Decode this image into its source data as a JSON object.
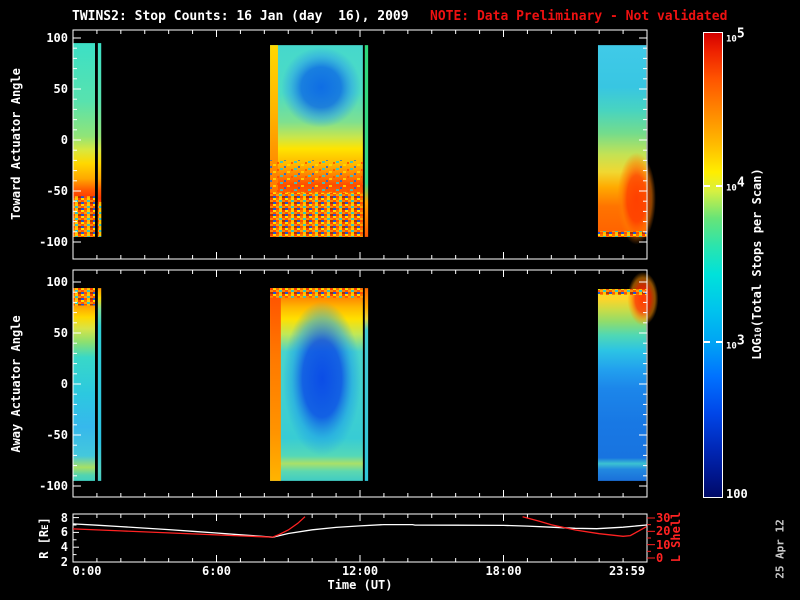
{
  "title": {
    "main": "TWINS2: Stop Counts: 16 Jan (day  16), 2009",
    "note": "NOTE: Data Preliminary - Not validated"
  },
  "colors": {
    "background": "#000000",
    "foreground": "#ffffff",
    "note_red": "#ee1111",
    "lshell_red": "#ff2222",
    "date_gray": "#c8c8c8"
  },
  "axes": {
    "x": {
      "label": "Time (UT)",
      "tick_labels": [
        "0:00",
        "6:00",
        "12:00",
        "18:00",
        "23:59"
      ],
      "tick_hours": [
        0,
        6,
        12,
        18,
        23.983
      ]
    },
    "toward": {
      "label": "Toward Actuator Angle",
      "tick_labels": [
        "100",
        "50",
        "0",
        "-50",
        "-100"
      ],
      "tick_values": [
        100,
        50,
        0,
        -50,
        -100
      ],
      "range": [
        -100,
        100
      ]
    },
    "away": {
      "label": "Away Actuator Angle",
      "tick_labels": [
        "100",
        "50",
        "0",
        "-50",
        "-100"
      ],
      "tick_values": [
        100,
        50,
        0,
        -50,
        -100
      ],
      "range": [
        -100,
        100
      ]
    },
    "r": {
      "label_pre": "R [R",
      "label_sub": "E",
      "label_post": "]",
      "tick_labels": [
        "8",
        "6",
        "4",
        "2"
      ],
      "tick_values": [
        8,
        6,
        4,
        2
      ],
      "range": [
        2,
        8.5
      ]
    },
    "lshell": {
      "label": "L Shell",
      "tick_labels": [
        "30",
        "20",
        "10",
        "0"
      ],
      "tick_values": [
        30,
        20,
        10,
        0
      ],
      "range": [
        0,
        33
      ],
      "color": "#ff2222"
    }
  },
  "colorbar": {
    "label_pre": "LOG",
    "label_sub": "10",
    "label_post": "(Total Stops per Scan)",
    "e5_base": "10",
    "e5_exp": "5",
    "e4_base": "10",
    "e4_exp": "4",
    "e3_base": "10",
    "e3_exp": "3",
    "min_label": "100",
    "gradient": [
      [
        0,
        "#d40000"
      ],
      [
        0.04,
        "#ee2200"
      ],
      [
        0.1,
        "#ff5500"
      ],
      [
        0.17,
        "#ff8800"
      ],
      [
        0.24,
        "#ffbb00"
      ],
      [
        0.3,
        "#ffee00"
      ],
      [
        0.34,
        "#d8f040"
      ],
      [
        0.4,
        "#66e478"
      ],
      [
        0.46,
        "#2ae4ae"
      ],
      [
        0.52,
        "#00e2da"
      ],
      [
        0.6,
        "#00c2ee"
      ],
      [
        0.667,
        "#00a4f4"
      ],
      [
        0.74,
        "#0072ff"
      ],
      [
        0.82,
        "#0046e8"
      ],
      [
        0.9,
        "#0026b4"
      ],
      [
        0.96,
        "#001488"
      ],
      [
        1,
        "#000a66"
      ]
    ]
  },
  "footer": {
    "date_stamp": "25 Apr 12"
  },
  "chart_data": [
    {
      "id": "toward",
      "type": "heatmap",
      "ylabel": "Toward Actuator Angle",
      "ylim": [
        -100,
        100
      ],
      "xlim_hours": [
        0,
        24
      ],
      "zscale": {
        "label": "LOG10(Total Stops per Scan)",
        "min": 100,
        "max": 100000,
        "scale": "log",
        "colormap": "rainbow blue=low red=high"
      },
      "coverage_hours": [
        [
          0,
          0.92
        ],
        [
          1.04,
          1.18
        ],
        [
          8.24,
          12.12
        ],
        [
          12.2,
          12.34
        ],
        [
          21.95,
          23.97
        ]
      ],
      "blocks": [
        {
          "x_h": [
            0,
            0.92
          ],
          "y_a": [
            95,
            -95
          ],
          "noise": [
            0.79,
            1
          ],
          "stops": [
            [
              0,
              "#3ce0c6"
            ],
            [
              0.3,
              "#58e2ae"
            ],
            [
              0.48,
              "#90e478"
            ],
            [
              0.55,
              "#d8e840"
            ],
            [
              0.62,
              "#ffd800"
            ],
            [
              0.7,
              "#ffa800"
            ],
            [
              0.76,
              "#ff5800"
            ],
            [
              0.8,
              "#ff3800"
            ],
            [
              0.86,
              "#ff7400"
            ],
            [
              1,
              "#ff8400"
            ]
          ]
        },
        {
          "x_h": [
            1.04,
            1.18
          ],
          "y_a": [
            95,
            -95
          ],
          "noise": [
            0.82,
            1
          ],
          "stops": [
            [
              0,
              "#3ce0c6"
            ],
            [
              0.3,
              "#58e2ae"
            ],
            [
              0.48,
              "#90e478"
            ],
            [
              0.55,
              "#d8e840"
            ],
            [
              0.62,
              "#ffd800"
            ],
            [
              0.7,
              "#ffa800"
            ],
            [
              0.76,
              "#ff5800"
            ],
            [
              0.8,
              "#ff3800"
            ],
            [
              0.86,
              "#ff7400"
            ],
            [
              1,
              "#ff8400"
            ]
          ]
        },
        {
          "x_h": [
            8.24,
            12.12
          ],
          "y_a": [
            93,
            -95
          ],
          "noise": [
            0.77,
            1
          ],
          "noise2": [
            0.6,
            0.77
          ],
          "left_col": {
            "w_h": 0.33,
            "stops": [
              [
                0,
                "#ffd800"
              ],
              [
                0.35,
                "#ffb400"
              ],
              [
                0.6,
                "#ff9000"
              ],
              [
                0.85,
                "#ff6800"
              ],
              [
                1,
                "#ff5000"
              ]
            ]
          },
          "blob": {
            "cx": 0.55,
            "cy": 0.22,
            "rx": 0.43,
            "ry": 0.21,
            "color": "#0c68e6",
            "mid": "#2ea2e8"
          },
          "stops": [
            [
              0,
              "#46d8cc"
            ],
            [
              0.25,
              "#4cdcc4"
            ],
            [
              0.4,
              "#7ee090"
            ],
            [
              0.48,
              "#c8e64c"
            ],
            [
              0.54,
              "#ffe400"
            ],
            [
              0.62,
              "#ffb800"
            ],
            [
              0.68,
              "#ff8000"
            ],
            [
              0.73,
              "#ff4c00"
            ],
            [
              0.78,
              "#ff6800"
            ],
            [
              1,
              "#ff7c00"
            ]
          ]
        },
        {
          "x_h": [
            12.2,
            12.34
          ],
          "y_a": [
            93,
            -95
          ],
          "stops": [
            [
              0,
              "#2ed87c"
            ],
            [
              0.72,
              "#38dc86"
            ],
            [
              0.82,
              "#ffa400"
            ],
            [
              1,
              "#ff5800"
            ]
          ]
        },
        {
          "x_h": [
            21.95,
            23.97
          ],
          "y_a": [
            93,
            -95
          ],
          "noise": [
            0.97,
            1
          ],
          "blob": {
            "cx": 0.8,
            "cy": 0.8,
            "rx": 0.4,
            "ry": 0.24,
            "color": "#ff3c00",
            "mid": "#ff7a00"
          },
          "stops": [
            [
              0,
              "#40cae8"
            ],
            [
              0.22,
              "#38c6e2"
            ],
            [
              0.34,
              "#48d4c0"
            ],
            [
              0.46,
              "#74dc8c"
            ],
            [
              0.57,
              "#c4e254"
            ],
            [
              0.66,
              "#f0d832"
            ],
            [
              0.74,
              "#ffaa00"
            ],
            [
              0.84,
              "#ff7400"
            ],
            [
              1,
              "#ff6000"
            ]
          ]
        }
      ]
    },
    {
      "id": "away",
      "type": "heatmap",
      "ylabel": "Away Actuator Angle",
      "ylim": [
        -100,
        100
      ],
      "xlim_hours": [
        0,
        24
      ],
      "zscale": {
        "label": "LOG10(Total Stops per Scan)",
        "min": 100,
        "max": 100000,
        "scale": "log",
        "colormap": "rainbow blue=low red=high"
      },
      "coverage_hours": [
        [
          0,
          0.92
        ],
        [
          1.04,
          1.18
        ],
        [
          8.24,
          12.12
        ],
        [
          12.2,
          12.34
        ],
        [
          21.95,
          23.97
        ]
      ],
      "blocks": [
        {
          "x_h": [
            0,
            0.92
          ],
          "y_a": [
            94,
            -95
          ],
          "noise": [
            0,
            0.09
          ],
          "stops": [
            [
              0,
              "#ff5000"
            ],
            [
              0.05,
              "#ff7800"
            ],
            [
              0.1,
              "#ffa800"
            ],
            [
              0.15,
              "#ffd800"
            ],
            [
              0.21,
              "#d8e448"
            ],
            [
              0.28,
              "#8ce070"
            ],
            [
              0.36,
              "#38d8c8"
            ],
            [
              0.55,
              "#2cc8e0"
            ],
            [
              0.72,
              "#36b8ec"
            ],
            [
              0.87,
              "#44c8dc"
            ],
            [
              0.93,
              "#a8e064"
            ],
            [
              0.97,
              "#52d4b0"
            ],
            [
              1,
              "#40d0c0"
            ]
          ]
        },
        {
          "x_h": [
            1.04,
            1.18
          ],
          "y_a": [
            94,
            -95
          ],
          "stops": [
            [
              0,
              "#ff9800"
            ],
            [
              0.05,
              "#ffd800"
            ],
            [
              0.11,
              "#7ce09a"
            ],
            [
              0.2,
              "#30d0d4"
            ],
            [
              0.8,
              "#2cc2e2"
            ],
            [
              0.95,
              "#54d2c0"
            ],
            [
              1,
              "#44ccc8"
            ]
          ]
        },
        {
          "x_h": [
            8.24,
            12.12
          ],
          "y_a": [
            94,
            -95
          ],
          "noise": [
            0,
            0.05
          ],
          "left_col": {
            "w_h": 0.45,
            "stops": [
              [
                0,
                "#ff5000"
              ],
              [
                0.35,
                "#ff7800"
              ],
              [
                0.75,
                "#ff9400"
              ],
              [
                1,
                "#ffb400"
              ]
            ]
          },
          "blob": {
            "cx": 0.56,
            "cy": 0.47,
            "rx": 0.42,
            "ry": 0.4,
            "color": "#0846e8",
            "mid": "#20a0e8"
          },
          "stops": [
            [
              0,
              "#ff5800"
            ],
            [
              0.05,
              "#ff8800"
            ],
            [
              0.1,
              "#ffb800"
            ],
            [
              0.16,
              "#ffe000"
            ],
            [
              0.24,
              "#c0e858"
            ],
            [
              0.33,
              "#48d4cc"
            ],
            [
              0.78,
              "#38ccd4"
            ],
            [
              0.87,
              "#54d8b8"
            ],
            [
              0.91,
              "#aae068"
            ],
            [
              0.95,
              "#5cd8b0"
            ],
            [
              1,
              "#40ccc4"
            ]
          ]
        },
        {
          "x_h": [
            12.2,
            12.34
          ],
          "y_a": [
            94,
            -95
          ],
          "stops": [
            [
              0,
              "#ff6a00"
            ],
            [
              0.1,
              "#ffac00"
            ],
            [
              0.16,
              "#e8d840"
            ],
            [
              0.22,
              "#44ccd4"
            ],
            [
              1,
              "#30c6da"
            ]
          ]
        },
        {
          "x_h": [
            21.95,
            23.97
          ],
          "y_a": [
            93,
            -95
          ],
          "noise": [
            0,
            0.03
          ],
          "blob": {
            "cx": 0.93,
            "cy": 0.05,
            "rx": 0.32,
            "ry": 0.14,
            "color": "#ff3400",
            "mid": "#ff9000"
          },
          "stops": [
            [
              0,
              "#e8e030"
            ],
            [
              0.05,
              "#ffd428"
            ],
            [
              0.11,
              "#c8dc48"
            ],
            [
              0.17,
              "#90dc6c"
            ],
            [
              0.24,
              "#50d8b4"
            ],
            [
              0.32,
              "#2cc4e4"
            ],
            [
              0.42,
              "#22a0ee"
            ],
            [
              0.52,
              "#1c86ea"
            ],
            [
              0.7,
              "#1878e4"
            ],
            [
              0.88,
              "#1874e0"
            ],
            [
              0.91,
              "#3cc2d2"
            ],
            [
              0.94,
              "#2288e0"
            ],
            [
              1,
              "#1a70da"
            ]
          ]
        }
      ]
    },
    {
      "id": "orbit",
      "type": "line",
      "xlabel": "Time (UT)",
      "x_hours_range": [
        0,
        24
      ],
      "series": [
        {
          "name": "R [RE]",
          "axis": "left",
          "ylim": [
            2,
            8
          ],
          "color": "#ffffff",
          "points": [
            [
              0,
              7.15
            ],
            [
              1,
              6.97
            ],
            [
              2,
              6.78
            ],
            [
              3,
              6.58
            ],
            [
              4,
              6.38
            ],
            [
              5,
              6.15
            ],
            [
              6,
              5.92
            ],
            [
              7,
              5.68
            ],
            [
              8,
              5.45
            ],
            [
              8.35,
              5.35
            ],
            [
              9,
              5.85
            ],
            [
              10,
              6.35
            ],
            [
              11,
              6.68
            ],
            [
              12,
              6.88
            ],
            [
              13,
              7.05
            ],
            [
              14.2,
              7.05
            ],
            [
              14.3,
              6.98
            ],
            [
              16,
              6.97
            ],
            [
              18,
              6.95
            ],
            [
              19,
              6.85
            ],
            [
              20,
              6.7
            ],
            [
              21,
              6.55
            ],
            [
              21.9,
              6.5
            ],
            [
              23,
              6.7
            ],
            [
              23.98,
              7.0
            ]
          ]
        },
        {
          "name": "L Shell",
          "axis": "right",
          "ylim": [
            0,
            30
          ],
          "color": "#ff2222",
          "segments": [
            [
              [
                0,
                21.8
              ],
              [
                1,
                21.1
              ],
              [
                2,
                20.3
              ],
              [
                3,
                19.6
              ],
              [
                4,
                18.8
              ],
              [
                5,
                18.1
              ],
              [
                6,
                17.3
              ],
              [
                7,
                16.6
              ],
              [
                8,
                15.9
              ],
              [
                8.35,
                15.7
              ],
              [
                8.6,
                17.5
              ],
              [
                9,
                21
              ],
              [
                9.4,
                26
              ],
              [
                9.7,
                31
              ]
            ],
            [
              [
                18.8,
                31
              ],
              [
                19.5,
                27.5
              ],
              [
                20,
                25
              ],
              [
                21,
                21
              ],
              [
                22,
                18.2
              ],
              [
                23,
                16.3
              ],
              [
                23.3,
                16.8
              ],
              [
                23.98,
                23.5
              ]
            ]
          ]
        }
      ]
    }
  ]
}
